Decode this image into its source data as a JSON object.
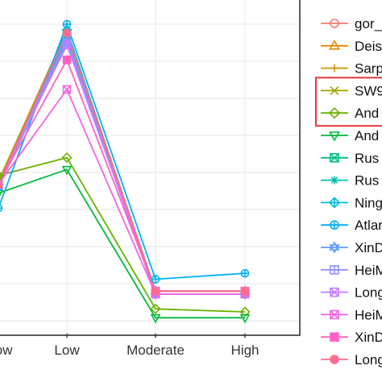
{
  "chart_data": {
    "type": "line",
    "categories": [
      "_low",
      "Low",
      "Moderate",
      "High"
    ],
    "ylim": [
      0,
      1
    ],
    "grid": true,
    "legend_position": "right",
    "highlight_box_color": "#e53935",
    "highlighted_legend_entries": [
      3,
      4
    ],
    "series": [
      {
        "name": "gor_",
        "color": "#f8766d",
        "marker": "circle-open",
        "values": [
          0.47,
          0.96,
          0.1,
          0.1
        ]
      },
      {
        "name": "Deis",
        "color": "#e58700",
        "marker": "triangle-up",
        "values": [
          0.47,
          0.98,
          0.1,
          0.1
        ]
      },
      {
        "name": "Sarp",
        "color": "#c99800",
        "marker": "plus",
        "values": [
          0.47,
          0.97,
          0.1,
          0.1
        ]
      },
      {
        "name": "SW9",
        "color": "#a3a500",
        "marker": "cross",
        "values": [
          0.47,
          0.97,
          0.1,
          0.1
        ]
      },
      {
        "name": "And",
        "color": "#6bb100",
        "marker": "diamond",
        "values": [
          0.49,
          0.55,
          0.04,
          0.03
        ]
      },
      {
        "name": "And",
        "color": "#00ba38",
        "marker": "triangle-down",
        "values": [
          0.43,
          0.51,
          0.01,
          0.01
        ]
      },
      {
        "name": "Rus",
        "color": "#00bf7d",
        "marker": "square-cross",
        "values": [
          0.46,
          0.97,
          0.09,
          0.09
        ]
      },
      {
        "name": "Rus",
        "color": "#00c0af",
        "marker": "asterisk",
        "values": [
          0.46,
          0.96,
          0.09,
          0.09
        ]
      },
      {
        "name": "Ning",
        "color": "#00bcd8",
        "marker": "diamond-plus",
        "values": [
          0.45,
          0.98,
          0.09,
          0.09
        ]
      },
      {
        "name": "Atlar",
        "color": "#00b0f6",
        "marker": "circle-plus",
        "values": [
          0.38,
          1.0,
          0.14,
          0.16
        ]
      },
      {
        "name": "XinD",
        "color": "#619cff",
        "marker": "star",
        "values": [
          0.45,
          0.94,
          0.09,
          0.09
        ]
      },
      {
        "name": "HeiM",
        "color": "#9590ff",
        "marker": "square-plus",
        "values": [
          0.46,
          0.95,
          0.09,
          0.09
        ]
      },
      {
        "name": "Long",
        "color": "#c77cff",
        "marker": "square-x",
        "values": [
          0.46,
          0.93,
          0.1,
          0.1
        ]
      },
      {
        "name": "HeiM",
        "color": "#f564e3",
        "marker": "square-x-open",
        "values": [
          0.46,
          0.78,
          0.09,
          0.09
        ]
      },
      {
        "name": "XinD",
        "color": "#ff61c3",
        "marker": "square",
        "values": [
          0.46,
          0.88,
          0.1,
          0.1
        ]
      },
      {
        "name": "Long",
        "color": "#ff6c91",
        "marker": "circle",
        "values": [
          0.46,
          0.97,
          0.1,
          0.1
        ]
      }
    ]
  }
}
